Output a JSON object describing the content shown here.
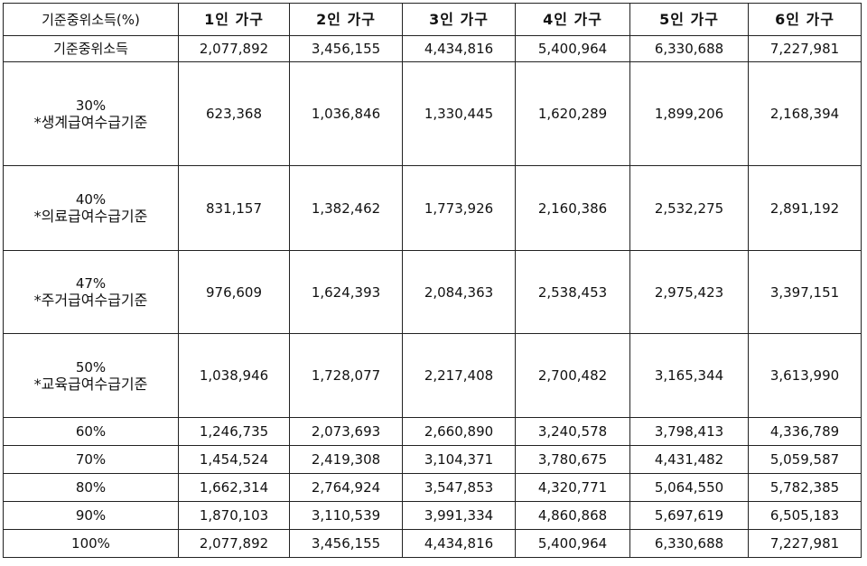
{
  "table": {
    "header": {
      "label": "기준중위소득(%)",
      "columns": [
        "1인 가구",
        "2인 가구",
        "3인 가구",
        "4인 가구",
        "5인 가구",
        "6인 가구"
      ]
    },
    "rows": [
      {
        "label": "기준중위소득",
        "values": [
          "2,077,892",
          "3,456,155",
          "4,434,816",
          "5,400,964",
          "6,330,688",
          "7,227,981"
        ]
      },
      {
        "pct": "30%",
        "label": "*생계급여수급기준",
        "values": [
          "623,368",
          "1,036,846",
          "1,330,445",
          "1,620,289",
          "1,899,206",
          "2,168,394"
        ]
      },
      {
        "pct": "40%",
        "label": "*의료급여수급기준",
        "values": [
          "831,157",
          "1,382,462",
          "1,773,926",
          "2,160,386",
          "2,532,275",
          "2,891,192"
        ]
      },
      {
        "pct": "47%",
        "label": "*주거급여수급기준",
        "values": [
          "976,609",
          "1,624,393",
          "2,084,363",
          "2,538,453",
          "2,975,423",
          "3,397,151"
        ]
      },
      {
        "pct": "50%",
        "label": "*교육급여수급기준",
        "values": [
          "1,038,946",
          "1,728,077",
          "2,217,408",
          "2,700,482",
          "3,165,344",
          "3,613,990"
        ]
      },
      {
        "label": "60%",
        "values": [
          "1,246,735",
          "2,073,693",
          "2,660,890",
          "3,240,578",
          "3,798,413",
          "4,336,789"
        ]
      },
      {
        "label": "70%",
        "values": [
          "1,454,524",
          "2,419,308",
          "3,104,371",
          "3,780,675",
          "4,431,482",
          "5,059,587"
        ]
      },
      {
        "label": "80%",
        "values": [
          "1,662,314",
          "2,764,924",
          "3,547,853",
          "4,320,771",
          "5,064,550",
          "5,782,385"
        ]
      },
      {
        "label": "90%",
        "values": [
          "1,870,103",
          "3,110,539",
          "3,991,334",
          "4,860,868",
          "5,697,619",
          "6,505,183"
        ]
      },
      {
        "label": "100%",
        "values": [
          "2,077,892",
          "3,456,155",
          "4,434,816",
          "5,400,964",
          "6,330,688",
          "7,227,981"
        ]
      }
    ]
  }
}
